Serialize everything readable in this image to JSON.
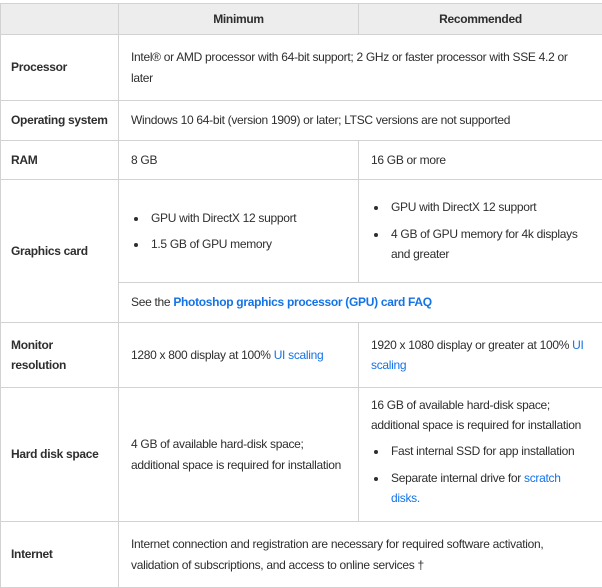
{
  "header": {
    "minimum": "Minimum",
    "recommended": "Recommended"
  },
  "rows": {
    "processor": {
      "label": "Processor",
      "value": "Intel® or AMD processor with 64-bit support; 2 GHz or faster processor with SSE 4.2 or later"
    },
    "operating_system": {
      "label": "Operating system",
      "value": "Windows 10 64-bit (version 1909) or later; LTSC versions are not supported"
    },
    "ram": {
      "label": "RAM",
      "minimum": "8 GB",
      "recommended": "16 GB or more"
    },
    "graphics_card": {
      "label": "Graphics card",
      "minimum_bullets": [
        "GPU with DirectX 12 support",
        "1.5 GB of GPU memory"
      ],
      "recommended_bullets": [
        "GPU with DirectX 12 support",
        "4 GB of GPU memory for 4k displays and greater"
      ],
      "faq_note_prefix": "See the ",
      "faq_link_text": "Photoshop graphics processor (GPU) card FAQ"
    },
    "monitor_resolution": {
      "label": "Monitor resolution",
      "minimum_text": "1280 x 800 display at 100% ",
      "minimum_link_text": "UI scaling",
      "recommended_text": "1920 x 1080 display or greater at 100% ",
      "recommended_link_text": "UI scaling"
    },
    "hard_disk_space": {
      "label": "Hard disk space",
      "minimum": "4 GB of available hard-disk space;\nadditional space is required for installation",
      "recommended_intro": "16 GB of available hard-disk space; additional space is required for installation",
      "recommended_bullet_1": "Fast internal SSD for app installation",
      "recommended_bullet_2_text": "Separate internal drive for ",
      "recommended_bullet_2_link_text": "scratch disks."
    },
    "internet": {
      "label": "Internet",
      "value": "Internet connection and registration are necessary for required software activation, validation of subscriptions, and access to online services †"
    }
  },
  "colors": {
    "link_blue": "#1473e6",
    "header_background": "#ededed",
    "border": "#d2d2d2",
    "text": "#2e2e2e"
  }
}
